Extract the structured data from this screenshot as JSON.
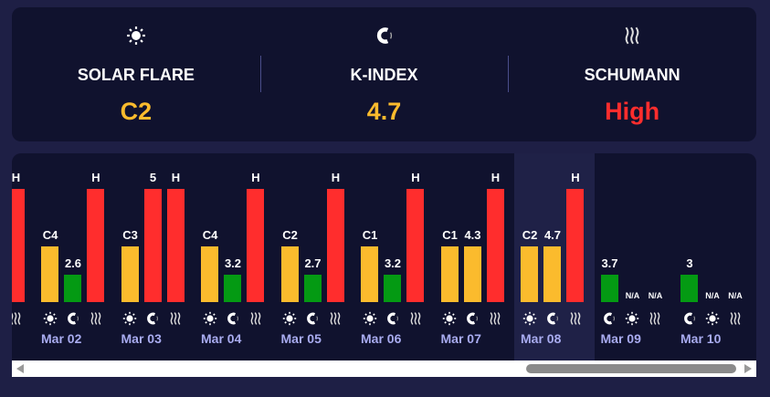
{
  "colors": {
    "low": "#049a13",
    "medium": "#fbbb2d",
    "high": "#ff2d2d"
  },
  "summary": [
    {
      "icon": "sun-icon",
      "label": "SOLAR FLARE",
      "value": "C2",
      "level": "medium"
    },
    {
      "icon": "magnet-icon",
      "label": "K-INDEX",
      "value": "4.7",
      "level": "medium"
    },
    {
      "icon": "waves-icon",
      "label": "SCHUMANN",
      "value": "High",
      "level": "high"
    }
  ],
  "days": [
    {
      "date": "",
      "selected": false,
      "bars": [
        {
          "type": "none",
          "label": "",
          "level": "none"
        },
        {
          "type": "none",
          "label": "",
          "level": "none"
        },
        {
          "type": "schumann",
          "label": "H",
          "level": "high"
        }
      ]
    },
    {
      "date": "Mar 02",
      "selected": false,
      "bars": [
        {
          "type": "solar",
          "label": "C4",
          "level": "medium"
        },
        {
          "type": "kp",
          "label": "2.6",
          "level": "low"
        },
        {
          "type": "schumann",
          "label": "H",
          "level": "high"
        }
      ]
    },
    {
      "date": "Mar 03",
      "selected": false,
      "bars": [
        {
          "type": "solar",
          "label": "C3",
          "level": "medium"
        },
        {
          "type": "kp",
          "label": "5",
          "level": "high"
        },
        {
          "type": "schumann",
          "label": "H",
          "level": "high"
        }
      ]
    },
    {
      "date": "Mar 04",
      "selected": false,
      "bars": [
        {
          "type": "solar",
          "label": "C4",
          "level": "medium"
        },
        {
          "type": "kp",
          "label": "3.2",
          "level": "low"
        },
        {
          "type": "schumann",
          "label": "H",
          "level": "high"
        }
      ]
    },
    {
      "date": "Mar 05",
      "selected": false,
      "bars": [
        {
          "type": "solar",
          "label": "C2",
          "level": "medium"
        },
        {
          "type": "kp",
          "label": "2.7",
          "level": "low"
        },
        {
          "type": "schumann",
          "label": "H",
          "level": "high"
        }
      ]
    },
    {
      "date": "Mar 06",
      "selected": false,
      "bars": [
        {
          "type": "solar",
          "label": "C1",
          "level": "medium"
        },
        {
          "type": "kp",
          "label": "3.2",
          "level": "low"
        },
        {
          "type": "schumann",
          "label": "H",
          "level": "high"
        }
      ]
    },
    {
      "date": "Mar 07",
      "selected": false,
      "bars": [
        {
          "type": "solar",
          "label": "C1",
          "level": "medium"
        },
        {
          "type": "kp",
          "label": "4.3",
          "level": "medium"
        },
        {
          "type": "schumann",
          "label": "H",
          "level": "high"
        }
      ]
    },
    {
      "date": "Mar 08",
      "selected": true,
      "bars": [
        {
          "type": "solar",
          "label": "C2",
          "level": "medium"
        },
        {
          "type": "kp",
          "label": "4.7",
          "level": "medium"
        },
        {
          "type": "schumann",
          "label": "H",
          "level": "high"
        }
      ]
    },
    {
      "date": "Mar 09",
      "selected": false,
      "bars": [
        {
          "type": "kp",
          "label": "3.7",
          "level": "low"
        },
        {
          "type": "solar",
          "label": "N/A",
          "level": "na"
        },
        {
          "type": "schumann",
          "label": "N/A",
          "level": "na"
        }
      ]
    },
    {
      "date": "Mar 10",
      "selected": false,
      "bars": [
        {
          "type": "kp",
          "label": "3",
          "level": "low"
        },
        {
          "type": "solar",
          "label": "N/A",
          "level": "na"
        },
        {
          "type": "schumann",
          "label": "N/A",
          "level": "na"
        }
      ]
    }
  ]
}
